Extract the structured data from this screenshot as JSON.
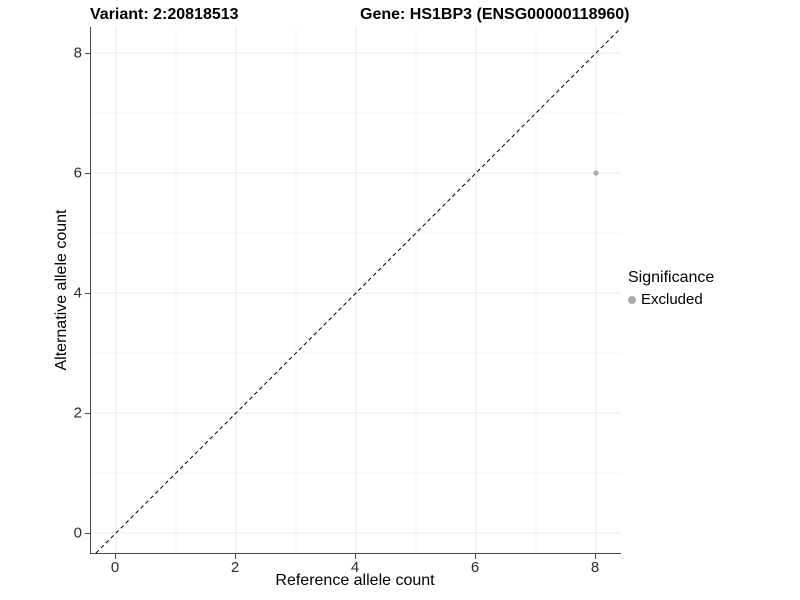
{
  "titles": {
    "variant": "Variant: 2:20818513",
    "gene": "Gene: HS1BP3 (ENSG00000118960)"
  },
  "chart_data": {
    "type": "scatter",
    "title": "Variant: 2:20818513  |  Gene: HS1BP3 (ENSG00000118960)",
    "xlabel": "Reference allele count",
    "ylabel": "Alternative allele count",
    "xlim": [
      -0.4167,
      8.4167
    ],
    "ylim": [
      -0.3333,
      8.4333
    ],
    "x_ticks": [
      0,
      2,
      4,
      6,
      8
    ],
    "y_ticks": [
      0,
      2,
      4,
      6,
      8
    ],
    "x_minor": [
      1,
      3,
      5,
      7
    ],
    "y_minor": [
      1,
      3,
      5,
      7
    ],
    "grid": "major-and-minor",
    "points": [
      {
        "x": 8,
        "y": 6,
        "series": "Excluded"
      }
    ],
    "identity_line": {
      "slope": 1,
      "intercept": 0,
      "style": "dashed",
      "color": "#000000"
    },
    "legend": {
      "position": "right",
      "title": "Significance",
      "items": [
        {
          "label": "Excluded",
          "color": "#ababab"
        }
      ]
    },
    "colors": {
      "point_excluded": "#ababab",
      "axis_line": "#474747",
      "grid_major": "#e8e8e8",
      "grid_minor": "#f4f4f4",
      "tick_text": "#2b2b2b"
    }
  }
}
